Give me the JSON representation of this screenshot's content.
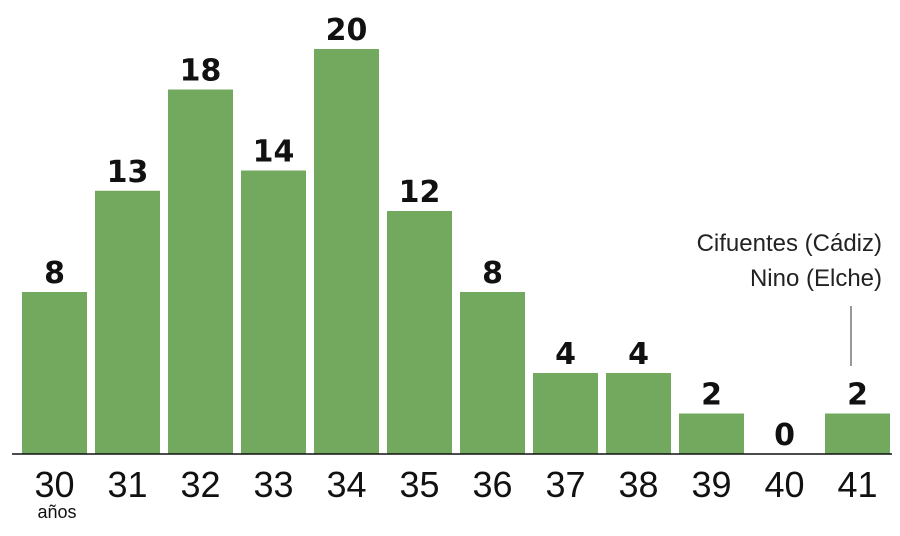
{
  "chart_data": {
    "type": "bar",
    "categories": [
      "30",
      "31",
      "32",
      "33",
      "34",
      "35",
      "36",
      "37",
      "38",
      "39",
      "40",
      "41"
    ],
    "values": [
      8,
      13,
      18,
      14,
      20,
      12,
      8,
      4,
      4,
      2,
      0,
      2
    ],
    "title": "",
    "xlabel": "",
    "ylabel": "",
    "x_unit_label": "años",
    "ylim": [
      0,
      20
    ],
    "grid": false,
    "annotation": {
      "category": "41",
      "lines": [
        "Cifuentes (Cádiz)",
        "Nino (Elche)"
      ]
    },
    "colors": {
      "bar": "#73a95f",
      "text": "#111111"
    }
  }
}
